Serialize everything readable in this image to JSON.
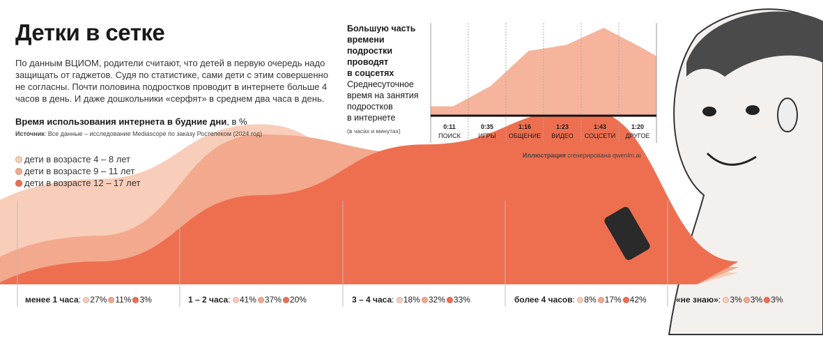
{
  "header": {
    "title": "Детки в сетке",
    "lead": "По данным ВЦИОМ, родители считают, что детей в первую очередь надо защищать от гаджетов. Судя по статистике, сами дети с этим совершенно не согласны. Почти половина подростков проводит в интернете больше 4 часов в день. И даже дошкольники «серфят» в среднем два часа в день."
  },
  "colors": {
    "age_4_8": "#f8cdb9",
    "age_9_11": "#f2a98d",
    "age_12_17": "#ee6f50",
    "side_chart": "#f5b49b"
  },
  "chart_data": [
    {
      "type": "area",
      "title": "Время использования интернета в будние дни",
      "title_unit": ", в %",
      "source_label": "Источник",
      "source_text": ": Все данные – исследование Mediascope по заказу Ростелеком (2024 год)",
      "categories": [
        "менее 1 часа",
        "1 – 2 часа",
        "3 – 4 часа",
        "более 4 часов",
        "«не знаю»"
      ],
      "series": [
        {
          "name": "дети в возрасте 4 – 8 лет",
          "values": [
            27,
            41,
            18,
            8,
            3
          ],
          "labels": [
            "27%",
            "41%",
            "18%",
            "8%",
            "3%"
          ]
        },
        {
          "name": "дети в возрасте 9 – 11 лет",
          "values": [
            11,
            37,
            32,
            17,
            3
          ],
          "labels": [
            "11%",
            "37%",
            "32%",
            "17%",
            "3%"
          ]
        },
        {
          "name": "дети в возрасте 12 – 17 лет",
          "values": [
            3,
            20,
            33,
            42,
            3
          ],
          "labels": [
            "3%",
            "20%",
            "33%",
            "42%",
            "3%"
          ]
        }
      ],
      "ylabel": "%",
      "legend": "top-left"
    },
    {
      "type": "area",
      "title_lines": [
        "Большую часть",
        "времени",
        "подростки",
        "проводят",
        "в соцсетях"
      ],
      "subtitle_lines": [
        "Среднесуточное",
        "время на занятия",
        "подростков",
        "в интернете"
      ],
      "unit_note": "(в часах и минутах)",
      "categories": [
        "ПОИСК",
        "ИГРЫ",
        "ОБЩЕНИЕ",
        "ВИДЕО",
        "СОЦСЕТИ",
        "ДРУГОЕ"
      ],
      "labels": [
        "0:11",
        "0:35",
        "1:16",
        "1:23",
        "1:43",
        "1:20"
      ],
      "values_minutes": [
        11,
        35,
        76,
        83,
        103,
        80
      ]
    }
  ],
  "credit": {
    "bold": "Иллюстрация",
    "rest": " сгенерирована qwenlm.ai"
  }
}
